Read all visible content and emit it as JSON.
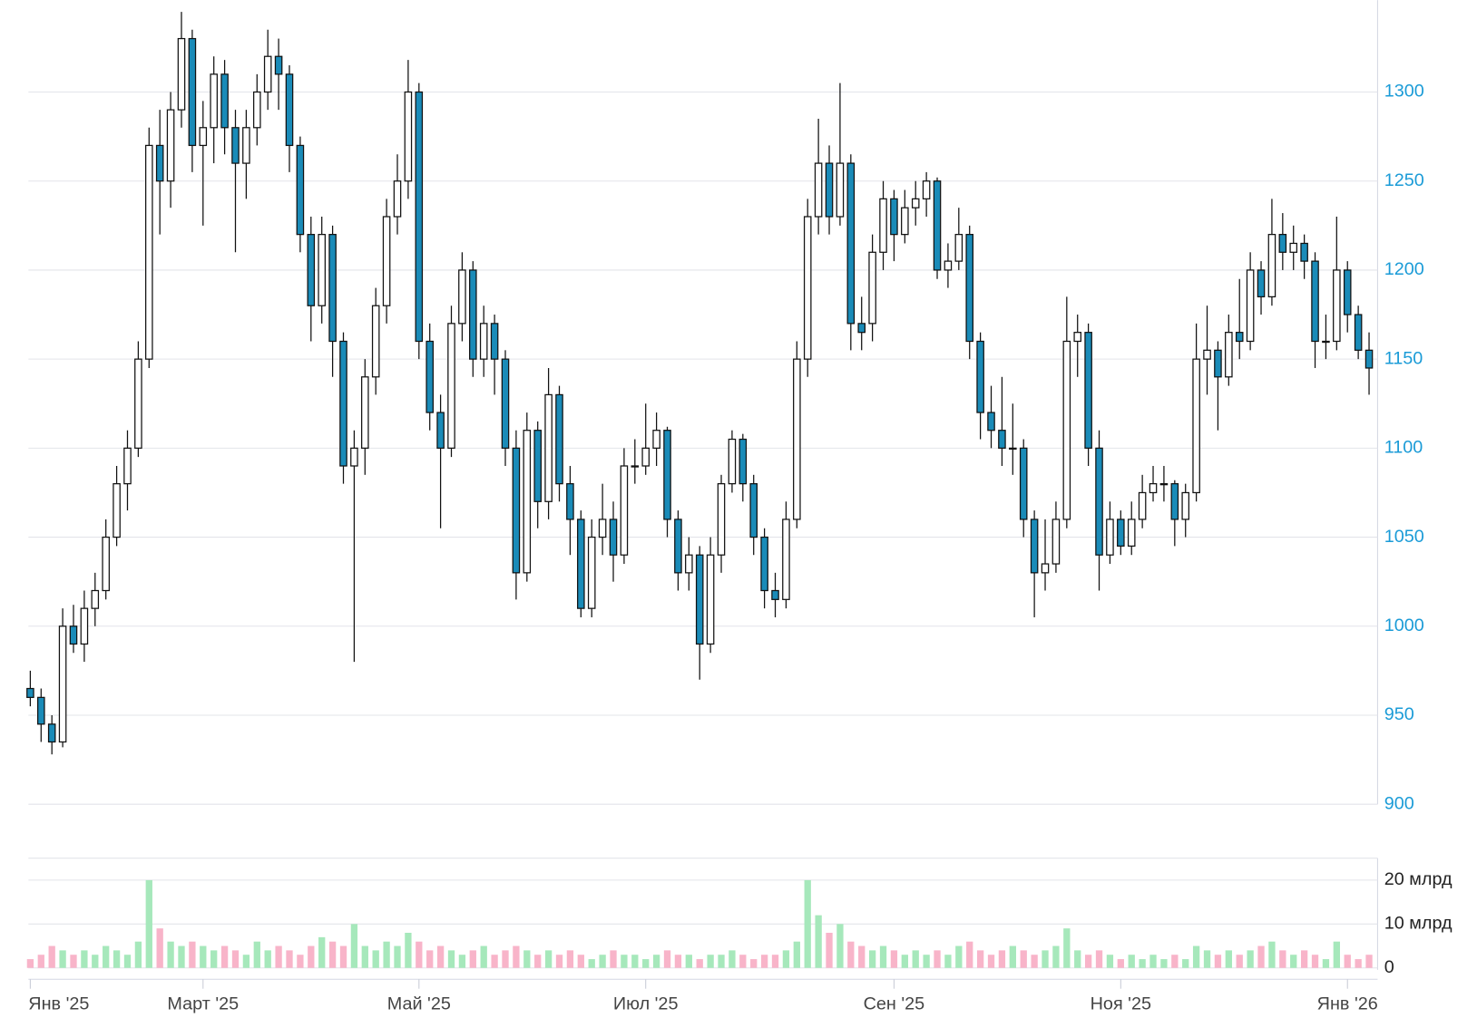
{
  "chart_data": {
    "type": "candlestick",
    "categories": [
      "Янв '25",
      null,
      null,
      null,
      null,
      null,
      null,
      null,
      null,
      null,
      null,
      null,
      null,
      null,
      null,
      null,
      "Март '25",
      null,
      null,
      null,
      null,
      null,
      null,
      null,
      null,
      null,
      null,
      null,
      null,
      null,
      null,
      null,
      null,
      null,
      null,
      null,
      "Май '25",
      null,
      null,
      null,
      null,
      null,
      null,
      null,
      null,
      null,
      null,
      null,
      null,
      null,
      null,
      null,
      null,
      null,
      null,
      null,
      null,
      "Июл '25",
      null,
      null,
      null,
      null,
      null,
      null,
      null,
      null,
      null,
      null,
      null,
      null,
      null,
      null,
      null,
      null,
      null,
      null,
      null,
      null,
      null,
      null,
      "Сен '25",
      null,
      null,
      null,
      null,
      null,
      null,
      null,
      null,
      null,
      null,
      null,
      null,
      null,
      null,
      null,
      null,
      null,
      null,
      null,
      null,
      "Ноя '25",
      null,
      null,
      null,
      null,
      null,
      null,
      null,
      null,
      null,
      null,
      null,
      null,
      null,
      null,
      null,
      null,
      null,
      null,
      null,
      null,
      "Янв '26",
      null,
      null
    ],
    "candles": [
      [
        965,
        975,
        955,
        960
      ],
      [
        960,
        965,
        935,
        945
      ],
      [
        945,
        950,
        928,
        935
      ],
      [
        935,
        1010,
        932,
        1000
      ],
      [
        1000,
        1012,
        985,
        990
      ],
      [
        990,
        1020,
        980,
        1010
      ],
      [
        1010,
        1030,
        1000,
        1020
      ],
      [
        1020,
        1060,
        1015,
        1050
      ],
      [
        1050,
        1090,
        1045,
        1080
      ],
      [
        1080,
        1110,
        1065,
        1100
      ],
      [
        1100,
        1160,
        1095,
        1150
      ],
      [
        1150,
        1280,
        1145,
        1270
      ],
      [
        1270,
        1290,
        1220,
        1250
      ],
      [
        1250,
        1300,
        1235,
        1290
      ],
      [
        1290,
        1345,
        1280,
        1330
      ],
      [
        1330,
        1335,
        1255,
        1270
      ],
      [
        1270,
        1295,
        1225,
        1280
      ],
      [
        1280,
        1320,
        1260,
        1310
      ],
      [
        1310,
        1318,
        1265,
        1280
      ],
      [
        1280,
        1290,
        1210,
        1260
      ],
      [
        1260,
        1290,
        1240,
        1280
      ],
      [
        1280,
        1310,
        1270,
        1300
      ],
      [
        1300,
        1335,
        1290,
        1320
      ],
      [
        1320,
        1330,
        1290,
        1310
      ],
      [
        1310,
        1315,
        1255,
        1270
      ],
      [
        1270,
        1275,
        1210,
        1220
      ],
      [
        1220,
        1230,
        1160,
        1180
      ],
      [
        1180,
        1230,
        1170,
        1220
      ],
      [
        1220,
        1225,
        1140,
        1160
      ],
      [
        1160,
        1165,
        1080,
        1090
      ],
      [
        1090,
        1110,
        980,
        1100
      ],
      [
        1100,
        1150,
        1085,
        1140
      ],
      [
        1140,
        1190,
        1130,
        1180
      ],
      [
        1180,
        1240,
        1170,
        1230
      ],
      [
        1230,
        1265,
        1220,
        1250
      ],
      [
        1250,
        1318,
        1240,
        1300
      ],
      [
        1300,
        1305,
        1150,
        1160
      ],
      [
        1160,
        1170,
        1110,
        1120
      ],
      [
        1120,
        1130,
        1055,
        1100
      ],
      [
        1100,
        1180,
        1095,
        1170
      ],
      [
        1170,
        1210,
        1160,
        1200
      ],
      [
        1200,
        1205,
        1140,
        1150
      ],
      [
        1150,
        1180,
        1140,
        1170
      ],
      [
        1170,
        1175,
        1130,
        1150
      ],
      [
        1150,
        1155,
        1090,
        1100
      ],
      [
        1100,
        1110,
        1015,
        1030
      ],
      [
        1030,
        1120,
        1025,
        1110
      ],
      [
        1110,
        1115,
        1055,
        1070
      ],
      [
        1070,
        1145,
        1060,
        1130
      ],
      [
        1130,
        1135,
        1070,
        1080
      ],
      [
        1080,
        1090,
        1040,
        1060
      ],
      [
        1060,
        1065,
        1005,
        1010
      ],
      [
        1010,
        1060,
        1005,
        1050
      ],
      [
        1050,
        1080,
        1040,
        1060
      ],
      [
        1060,
        1070,
        1025,
        1040
      ],
      [
        1040,
        1100,
        1035,
        1090
      ],
      [
        1090,
        1105,
        1080,
        1090
      ],
      [
        1090,
        1125,
        1085,
        1100
      ],
      [
        1100,
        1120,
        1090,
        1110
      ],
      [
        1110,
        1112,
        1050,
        1060
      ],
      [
        1060,
        1065,
        1020,
        1030
      ],
      [
        1030,
        1050,
        1020,
        1040
      ],
      [
        1040,
        1045,
        970,
        990
      ],
      [
        990,
        1050,
        985,
        1040
      ],
      [
        1040,
        1085,
        1030,
        1080
      ],
      [
        1080,
        1110,
        1075,
        1105
      ],
      [
        1105,
        1108,
        1070,
        1080
      ],
      [
        1080,
        1085,
        1040,
        1050
      ],
      [
        1050,
        1055,
        1010,
        1020
      ],
      [
        1020,
        1030,
        1005,
        1015
      ],
      [
        1015,
        1070,
        1010,
        1060
      ],
      [
        1060,
        1160,
        1055,
        1150
      ],
      [
        1150,
        1240,
        1140,
        1230
      ],
      [
        1230,
        1285,
        1220,
        1260
      ],
      [
        1260,
        1270,
        1220,
        1230
      ],
      [
        1230,
        1305,
        1225,
        1260
      ],
      [
        1260,
        1265,
        1155,
        1170
      ],
      [
        1170,
        1185,
        1155,
        1165
      ],
      [
        1170,
        1220,
        1160,
        1210
      ],
      [
        1210,
        1250,
        1200,
        1240
      ],
      [
        1240,
        1245,
        1205,
        1220
      ],
      [
        1220,
        1245,
        1215,
        1235
      ],
      [
        1235,
        1250,
        1225,
        1240
      ],
      [
        1240,
        1255,
        1230,
        1250
      ],
      [
        1250,
        1252,
        1195,
        1200
      ],
      [
        1200,
        1215,
        1190,
        1205
      ],
      [
        1205,
        1235,
        1200,
        1220
      ],
      [
        1220,
        1225,
        1150,
        1160
      ],
      [
        1160,
        1165,
        1105,
        1120
      ],
      [
        1120,
        1135,
        1100,
        1110
      ],
      [
        1110,
        1140,
        1090,
        1100
      ],
      [
        1100,
        1125,
        1085,
        1100
      ],
      [
        1100,
        1105,
        1050,
        1060
      ],
      [
        1060,
        1065,
        1005,
        1030
      ],
      [
        1030,
        1060,
        1020,
        1035
      ],
      [
        1035,
        1070,
        1030,
        1060
      ],
      [
        1060,
        1185,
        1055,
        1160
      ],
      [
        1160,
        1175,
        1140,
        1165
      ],
      [
        1165,
        1170,
        1090,
        1100
      ],
      [
        1100,
        1110,
        1020,
        1040
      ],
      [
        1040,
        1070,
        1035,
        1060
      ],
      [
        1060,
        1065,
        1040,
        1045
      ],
      [
        1045,
        1070,
        1040,
        1060
      ],
      [
        1060,
        1085,
        1055,
        1075
      ],
      [
        1075,
        1090,
        1070,
        1080
      ],
      [
        1080,
        1090,
        1070,
        1080
      ],
      [
        1080,
        1082,
        1045,
        1060
      ],
      [
        1060,
        1080,
        1050,
        1075
      ],
      [
        1075,
        1170,
        1070,
        1150
      ],
      [
        1150,
        1180,
        1130,
        1155
      ],
      [
        1155,
        1160,
        1110,
        1140
      ],
      [
        1140,
        1175,
        1135,
        1165
      ],
      [
        1165,
        1195,
        1150,
        1160
      ],
      [
        1160,
        1210,
        1155,
        1200
      ],
      [
        1200,
        1205,
        1175,
        1185
      ],
      [
        1185,
        1240,
        1180,
        1220
      ],
      [
        1220,
        1232,
        1200,
        1210
      ],
      [
        1210,
        1225,
        1200,
        1215
      ],
      [
        1215,
        1220,
        1195,
        1205
      ],
      [
        1205,
        1210,
        1145,
        1160
      ],
      [
        1160,
        1175,
        1150,
        1160
      ],
      [
        1160,
        1230,
        1155,
        1200
      ],
      [
        1200,
        1205,
        1165,
        1175
      ],
      [
        1175,
        1180,
        1150,
        1155
      ],
      [
        1155,
        1165,
        1130,
        1145
      ]
    ],
    "volume": [
      2,
      3,
      5,
      4,
      3,
      4,
      3,
      5,
      4,
      3,
      6,
      20,
      9,
      6,
      5,
      6,
      5,
      4,
      5,
      4,
      3,
      6,
      4,
      5,
      4,
      3,
      5,
      7,
      6,
      5,
      10,
      5,
      4,
      6,
      5,
      8,
      6,
      4,
      5,
      4,
      3,
      4,
      5,
      3,
      4,
      5,
      4,
      3,
      4,
      3,
      4,
      3,
      2,
      3,
      4,
      3,
      3,
      2,
      3,
      4,
      3,
      3,
      2,
      3,
      3,
      4,
      3,
      2,
      3,
      3,
      4,
      6,
      20,
      12,
      8,
      10,
      6,
      5,
      4,
      5,
      4,
      3,
      4,
      3,
      4,
      3,
      5,
      6,
      4,
      3,
      4,
      5,
      4,
      3,
      4,
      5,
      9,
      4,
      3,
      4,
      3,
      2,
      3,
      2,
      3,
      2,
      3,
      2,
      5,
      4,
      3,
      4,
      3,
      4,
      5,
      6,
      4,
      3,
      4,
      3,
      2,
      6,
      3,
      2,
      3
    ],
    "ylim": [
      900,
      1350
    ],
    "yticks": [
      900,
      950,
      1000,
      1050,
      1100,
      1150,
      1200,
      1250,
      1300
    ],
    "volume_ylim": [
      0,
      25
    ],
    "volume_yticks": [
      0,
      {
        "value": 10,
        "label": "10 млрд"
      },
      {
        "value": 20,
        "label": "20 млрд"
      }
    ],
    "up_color": "#ffffff",
    "down_color": "#1a8bb8",
    "volume_up_color": "#a6e8bb",
    "volume_down_color": "#f8b4c9",
    "grid": true
  }
}
